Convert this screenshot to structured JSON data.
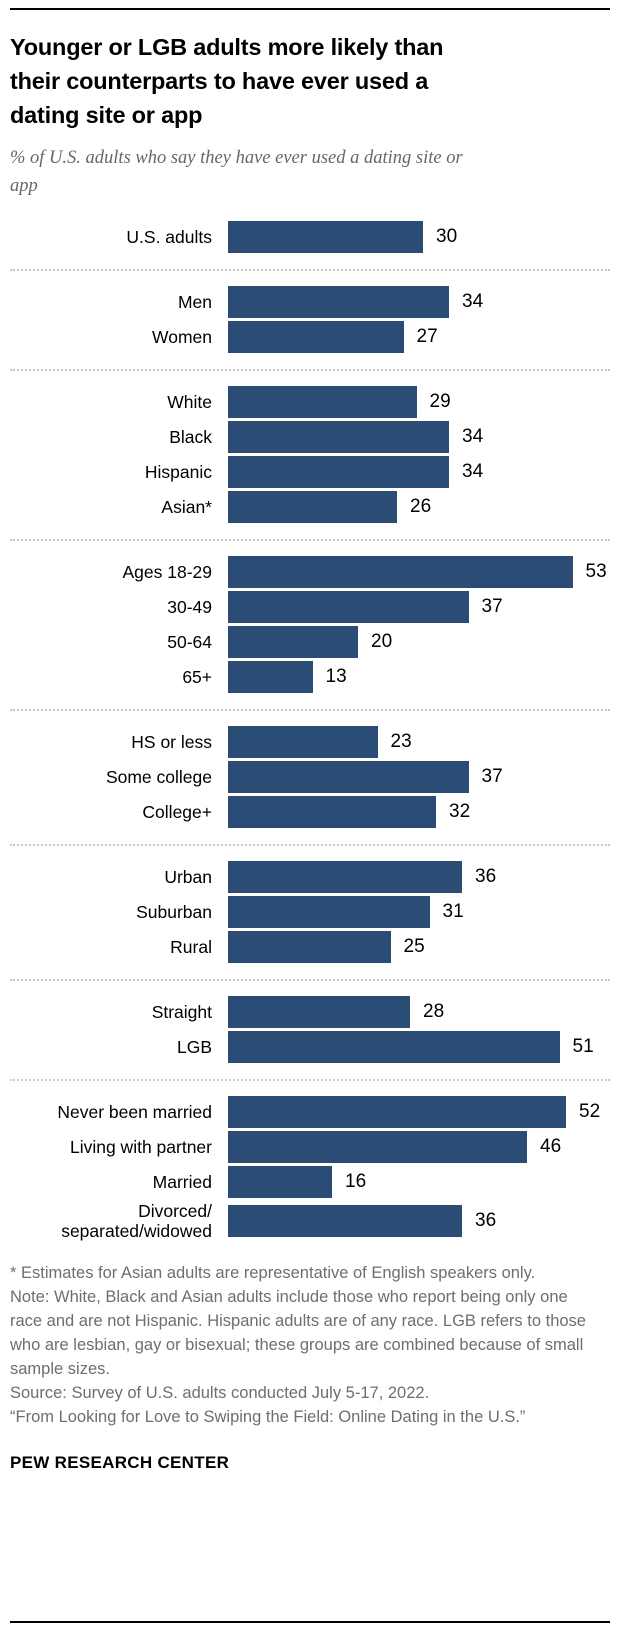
{
  "chart_data": {
    "type": "bar",
    "orientation": "horizontal",
    "title": "Younger or LGB adults more likely than their counterparts to have ever used a dating site or app",
    "subtitle": "% of U.S. adults who say they have ever used a dating site or app",
    "unit": "%",
    "value_labels": true,
    "grid": false,
    "legend": "none",
    "xlim": [
      0,
      55
    ],
    "bar_color": "#2b4c74",
    "groups": [
      {
        "rows": [
          {
            "label": "U.S. adults",
            "value": 30
          }
        ]
      },
      {
        "rows": [
          {
            "label": "Men",
            "value": 34
          },
          {
            "label": "Women",
            "value": 27
          }
        ]
      },
      {
        "rows": [
          {
            "label": "White",
            "value": 29
          },
          {
            "label": "Black",
            "value": 34
          },
          {
            "label": "Hispanic",
            "value": 34
          },
          {
            "label": "Asian*",
            "value": 26
          }
        ]
      },
      {
        "rows": [
          {
            "label": "Ages 18-29",
            "value": 53
          },
          {
            "label": "30-49",
            "value": 37
          },
          {
            "label": "50-64",
            "value": 20
          },
          {
            "label": "65+",
            "value": 13
          }
        ]
      },
      {
        "rows": [
          {
            "label": "HS or less",
            "value": 23
          },
          {
            "label": "Some college",
            "value": 37
          },
          {
            "label": "College+",
            "value": 32
          }
        ]
      },
      {
        "rows": [
          {
            "label": "Urban",
            "value": 36
          },
          {
            "label": "Suburban",
            "value": 31
          },
          {
            "label": "Rural",
            "value": 25
          }
        ]
      },
      {
        "rows": [
          {
            "label": "Straight",
            "value": 28
          },
          {
            "label": "LGB",
            "value": 51
          }
        ]
      },
      {
        "rows": [
          {
            "label": "Never been married",
            "value": 52
          },
          {
            "label": "Living with partner",
            "value": 46
          },
          {
            "label": "Married",
            "value": 16
          },
          {
            "label": "Divorced/\nseparated/widowed",
            "value": 36
          }
        ]
      }
    ]
  },
  "notes": [
    "* Estimates for Asian adults are representative of English speakers only.",
    "Note: White, Black and Asian adults include those who report being only one race and are not Hispanic. Hispanic adults are of any race. LGB refers to those who are lesbian, gay or bisexual; these groups are combined because of small sample sizes.",
    "Source: Survey of U.S. adults conducted July 5-17, 2022.",
    "“From Looking for Love to Swiping the Field: Online Dating in the U.S.”"
  ],
  "footer": {
    "wordmark": "PEW RESEARCH CENTER"
  }
}
